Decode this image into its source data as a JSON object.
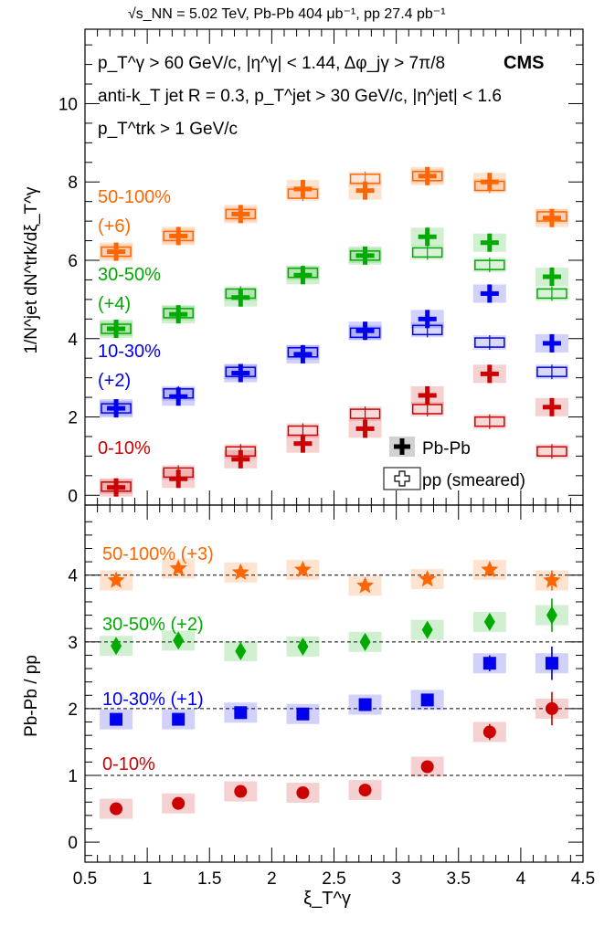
{
  "header": "√s_NN = 5.02 TeV, Pb-Pb 404 μb⁻¹, pp 27.4 pb⁻¹",
  "cms_label": "CMS",
  "cuts": {
    "line1": "p_T^γ > 60 GeV/c, |η^γ| < 1.44, Δφ_jγ > 7π/8",
    "line2": "anti-k_T jet R = 0.3, p_T^jet > 30 GeV/c, |η^jet| < 1.6",
    "line3": "p_T^trk > 1 GeV/c"
  },
  "legend": {
    "pbpb": "Pb-Pb",
    "pp": "pp (smeared)"
  },
  "chart_data": [
    {
      "type": "scatter",
      "panel": "top",
      "ylabel": "1/N^jet dN^trk/dξ_T^γ",
      "ylim": [
        -0.25,
        11.9
      ],
      "yticks": [
        0,
        2,
        4,
        6,
        8,
        10
      ],
      "x": [
        0.75,
        1.25,
        1.75,
        2.25,
        2.75,
        3.25,
        3.75,
        4.25
      ],
      "series": [
        {
          "name": "0-10%",
          "offset": "",
          "color": "#cc0000",
          "pbpb": [
            0.2,
            0.42,
            0.92,
            1.32,
            1.7,
            2.55,
            3.1,
            2.25
          ],
          "pp": [
            0.22,
            0.58,
            1.12,
            1.65,
            2.08,
            2.2,
            1.88,
            1.12
          ]
        },
        {
          "name": "10-30%",
          "offset": "(+2)",
          "color": "#0000ee",
          "pbpb": [
            2.22,
            2.52,
            3.12,
            3.6,
            4.2,
            4.5,
            5.15,
            3.88
          ],
          "pp": [
            2.22,
            2.6,
            3.15,
            3.65,
            4.15,
            4.22,
            3.9,
            3.15
          ]
        },
        {
          "name": "30-50%",
          "offset": "(+4)",
          "color": "#00aa00",
          "pbpb": [
            4.25,
            4.62,
            5.05,
            5.62,
            6.12,
            6.6,
            6.45,
            5.58
          ],
          "pp": [
            4.25,
            4.65,
            5.15,
            5.68,
            6.12,
            6.2,
            5.88,
            5.15
          ]
        },
        {
          "name": "50-100%",
          "offset": "(+6)",
          "color": "#ff6600",
          "pbpb": [
            6.22,
            6.62,
            7.18,
            7.82,
            7.78,
            8.15,
            8.0,
            7.08
          ],
          "pp": [
            6.22,
            6.62,
            7.18,
            7.7,
            8.08,
            8.15,
            7.9,
            7.12
          ]
        }
      ]
    },
    {
      "type": "scatter",
      "panel": "bottom",
      "xlabel": "ξ_T^γ",
      "ylabel": "Pb-Pb / pp",
      "xlim": [
        0.5,
        4.5
      ],
      "xticks": [
        0.5,
        1,
        1.5,
        2,
        2.5,
        3,
        3.5,
        4,
        4.5
      ],
      "ylim": [
        -0.3,
        5.05
      ],
      "yticks": [
        0,
        1,
        2,
        3,
        4
      ],
      "reference_lines": [
        1,
        2,
        3,
        4
      ],
      "x": [
        0.75,
        1.25,
        1.75,
        2.25,
        2.75,
        3.25,
        3.75,
        4.25
      ],
      "series": [
        {
          "name": "0-10%",
          "color": "#cc0000",
          "marker": "circle",
          "values": [
            0.5,
            0.58,
            0.76,
            0.74,
            0.78,
            1.13,
            1.65,
            2.0
          ]
        },
        {
          "name": "10-30% (+1)",
          "color": "#0000ee",
          "marker": "square",
          "values": [
            1.84,
            1.84,
            1.94,
            1.92,
            2.06,
            2.13,
            2.68,
            2.68
          ]
        },
        {
          "name": "30-50% (+2)",
          "color": "#00aa00",
          "marker": "diamond",
          "values": [
            2.94,
            3.02,
            2.86,
            2.93,
            3.0,
            3.18,
            3.3,
            3.4
          ]
        },
        {
          "name": "50-100% (+3)",
          "color": "#ff6600",
          "marker": "star",
          "values": [
            3.92,
            4.1,
            4.04,
            4.08,
            3.84,
            3.94,
            4.08,
            3.92
          ]
        }
      ]
    }
  ]
}
